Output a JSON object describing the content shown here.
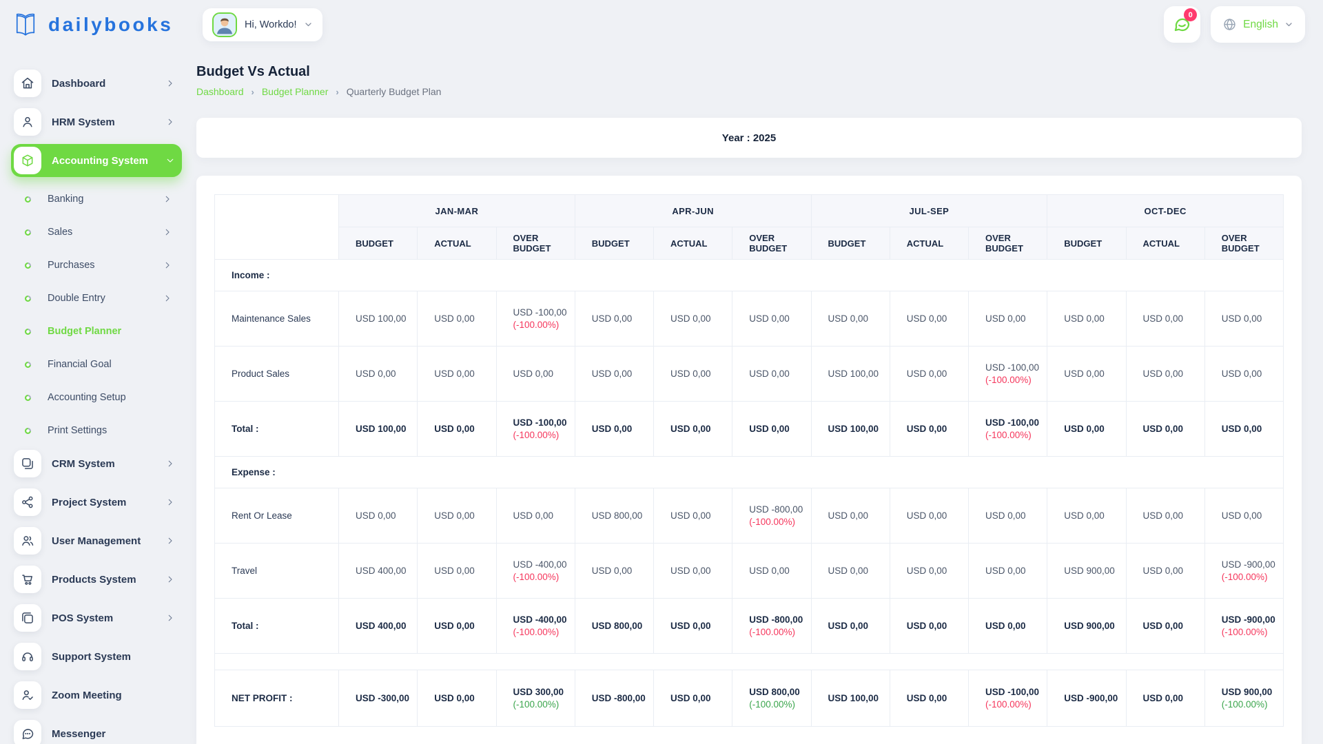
{
  "brand": {
    "name": "dailybooks"
  },
  "colors": {
    "accent_green": "#6fd943",
    "logo_blue": "#2673dd",
    "danger_red": "#f5365c",
    "success_green": "#3aa54c",
    "badge_pink": "#ff3a6e"
  },
  "header": {
    "greeting": "Hi, Workdo!",
    "messages_badge": "0",
    "language": "English"
  },
  "sidebar": {
    "items": [
      {
        "type": "main",
        "label": "Dashboard",
        "icon": "home",
        "chevron": "right"
      },
      {
        "type": "main",
        "label": "HRM System",
        "icon": "user",
        "chevron": "right"
      },
      {
        "type": "main",
        "label": "Accounting System",
        "icon": "cube",
        "chevron": "down",
        "active": true
      },
      {
        "type": "sub",
        "label": "Banking",
        "chevron": "right"
      },
      {
        "type": "sub",
        "label": "Sales",
        "chevron": "right"
      },
      {
        "type": "sub",
        "label": "Purchases",
        "chevron": "right"
      },
      {
        "type": "sub",
        "label": "Double Entry",
        "chevron": "right"
      },
      {
        "type": "sub",
        "label": "Budget Planner",
        "active": true
      },
      {
        "type": "sub",
        "label": "Financial Goal"
      },
      {
        "type": "sub",
        "label": "Accounting Setup"
      },
      {
        "type": "sub",
        "label": "Print Settings"
      },
      {
        "type": "main",
        "label": "CRM System",
        "icon": "copy",
        "chevron": "right"
      },
      {
        "type": "main",
        "label": "Project System",
        "icon": "share",
        "chevron": "right"
      },
      {
        "type": "main",
        "label": "User Management",
        "icon": "users",
        "chevron": "right"
      },
      {
        "type": "main",
        "label": "Products System",
        "icon": "cart",
        "chevron": "right"
      },
      {
        "type": "main",
        "label": "POS System",
        "icon": "pos",
        "chevron": "right"
      },
      {
        "type": "main",
        "label": "Support System",
        "icon": "headset"
      },
      {
        "type": "main",
        "label": "Zoom Meeting",
        "icon": "user-check"
      },
      {
        "type": "main",
        "label": "Messenger",
        "icon": "message"
      }
    ]
  },
  "page": {
    "title": "Budget Vs Actual",
    "breadcrumb": [
      "Dashboard",
      "Budget Planner",
      "Quarterly Budget Plan"
    ],
    "breadcrumb_separator": "›",
    "year_label": "Year : 2025"
  },
  "table": {
    "quarters": [
      "JAN-MAR",
      "APR-JUN",
      "JUL-SEP",
      "OCT-DEC"
    ],
    "columns": [
      "BUDGET",
      "ACTUAL",
      "OVER BUDGET"
    ],
    "rows": [
      {
        "type": "section",
        "label": "Income :"
      },
      {
        "type": "data",
        "label": "Maintenance Sales",
        "cells": [
          {
            "v": "USD 100,00"
          },
          {
            "v": "USD 0,00"
          },
          {
            "v": "USD -100,00",
            "p": "(-100.00%)",
            "pc": "red"
          },
          {
            "v": "USD 0,00"
          },
          {
            "v": "USD 0,00"
          },
          {
            "v": "USD 0,00"
          },
          {
            "v": "USD 0,00"
          },
          {
            "v": "USD 0,00"
          },
          {
            "v": "USD 0,00"
          },
          {
            "v": "USD 0,00"
          },
          {
            "v": "USD 0,00"
          },
          {
            "v": "USD 0,00"
          }
        ]
      },
      {
        "type": "data",
        "label": "Product Sales",
        "cells": [
          {
            "v": "USD 0,00"
          },
          {
            "v": "USD 0,00"
          },
          {
            "v": "USD 0,00"
          },
          {
            "v": "USD 0,00"
          },
          {
            "v": "USD 0,00"
          },
          {
            "v": "USD 0,00"
          },
          {
            "v": "USD 100,00"
          },
          {
            "v": "USD 0,00"
          },
          {
            "v": "USD -100,00",
            "p": "(-100.00%)",
            "pc": "red"
          },
          {
            "v": "USD 0,00"
          },
          {
            "v": "USD 0,00"
          },
          {
            "v": "USD 0,00"
          }
        ]
      },
      {
        "type": "total",
        "label": "Total :",
        "cells": [
          {
            "v": "USD 100,00"
          },
          {
            "v": "USD 0,00"
          },
          {
            "v": "USD -100,00",
            "p": "(-100.00%)",
            "pc": "red"
          },
          {
            "v": "USD 0,00"
          },
          {
            "v": "USD 0,00"
          },
          {
            "v": "USD 0,00"
          },
          {
            "v": "USD 100,00"
          },
          {
            "v": "USD 0,00"
          },
          {
            "v": "USD -100,00",
            "p": "(-100.00%)",
            "pc": "red"
          },
          {
            "v": "USD 0,00"
          },
          {
            "v": "USD 0,00"
          },
          {
            "v": "USD 0,00"
          }
        ]
      },
      {
        "type": "section",
        "label": "Expense :"
      },
      {
        "type": "data",
        "label": "Rent Or Lease",
        "cells": [
          {
            "v": "USD 0,00"
          },
          {
            "v": "USD 0,00"
          },
          {
            "v": "USD 0,00"
          },
          {
            "v": "USD 800,00"
          },
          {
            "v": "USD 0,00"
          },
          {
            "v": "USD -800,00",
            "p": "(-100.00%)",
            "pc": "red"
          },
          {
            "v": "USD 0,00"
          },
          {
            "v": "USD 0,00"
          },
          {
            "v": "USD 0,00"
          },
          {
            "v": "USD 0,00"
          },
          {
            "v": "USD 0,00"
          },
          {
            "v": "USD 0,00"
          }
        ]
      },
      {
        "type": "data",
        "label": "Travel",
        "cells": [
          {
            "v": "USD 400,00"
          },
          {
            "v": "USD 0,00"
          },
          {
            "v": "USD -400,00",
            "p": "(-100.00%)",
            "pc": "red"
          },
          {
            "v": "USD 0,00"
          },
          {
            "v": "USD 0,00"
          },
          {
            "v": "USD 0,00"
          },
          {
            "v": "USD 0,00"
          },
          {
            "v": "USD 0,00"
          },
          {
            "v": "USD 0,00"
          },
          {
            "v": "USD 900,00"
          },
          {
            "v": "USD 0,00"
          },
          {
            "v": "USD -900,00",
            "p": "(-100.00%)",
            "pc": "red"
          }
        ]
      },
      {
        "type": "total",
        "label": "Total :",
        "cells": [
          {
            "v": "USD 400,00"
          },
          {
            "v": "USD 0,00"
          },
          {
            "v": "USD -400,00",
            "p": "(-100.00%)",
            "pc": "red"
          },
          {
            "v": "USD 800,00"
          },
          {
            "v": "USD 0,00"
          },
          {
            "v": "USD -800,00",
            "p": "(-100.00%)",
            "pc": "red"
          },
          {
            "v": "USD 0,00"
          },
          {
            "v": "USD 0,00"
          },
          {
            "v": "USD 0,00"
          },
          {
            "v": "USD 900,00"
          },
          {
            "v": "USD 0,00"
          },
          {
            "v": "USD -900,00",
            "p": "(-100.00%)",
            "pc": "red"
          }
        ]
      },
      {
        "type": "spacer"
      },
      {
        "type": "net",
        "label": "NET PROFIT :",
        "cells": [
          {
            "v": "USD -300,00"
          },
          {
            "v": "USD 0,00"
          },
          {
            "v": "USD 300,00",
            "p": "(-100.00%)",
            "pc": "green"
          },
          {
            "v": "USD -800,00"
          },
          {
            "v": "USD 0,00"
          },
          {
            "v": "USD 800,00",
            "p": "(-100.00%)",
            "pc": "green"
          },
          {
            "v": "USD 100,00"
          },
          {
            "v": "USD 0,00"
          },
          {
            "v": "USD -100,00",
            "p": "(-100.00%)",
            "pc": "red"
          },
          {
            "v": "USD -900,00"
          },
          {
            "v": "USD 0,00"
          },
          {
            "v": "USD 900,00",
            "p": "(-100.00%)",
            "pc": "green"
          }
        ]
      }
    ]
  }
}
